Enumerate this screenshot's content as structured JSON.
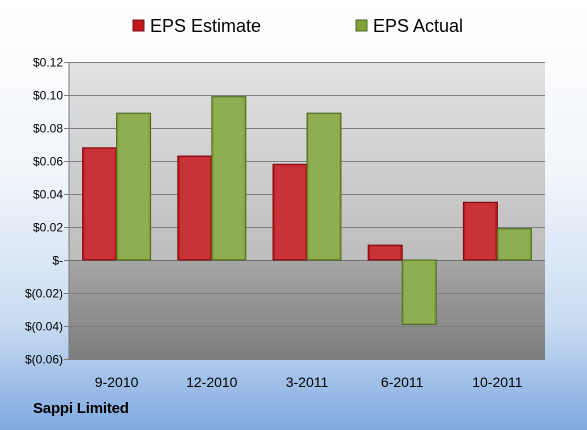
{
  "chart_data": {
    "type": "bar",
    "categories": [
      "9-2010",
      "12-2010",
      "3-2011",
      "6-2011",
      "10-2011"
    ],
    "series": [
      {
        "name": "EPS Estimate",
        "values": [
          0.068,
          0.063,
          0.058,
          0.009,
          0.035
        ],
        "color": "#c0171c"
      },
      {
        "name": "EPS Actual",
        "values": [
          0.089,
          0.099,
          0.089,
          -0.039,
          0.019
        ],
        "color": "#7fa33a"
      }
    ],
    "ylim": [
      -0.06,
      0.12
    ],
    "yticks": [
      {
        "value": 0.12,
        "label": "$0.12"
      },
      {
        "value": 0.1,
        "label": "$0.10"
      },
      {
        "value": 0.08,
        "label": "$0.08"
      },
      {
        "value": 0.06,
        "label": "$0.06"
      },
      {
        "value": 0.04,
        "label": "$0.04"
      },
      {
        "value": 0.02,
        "label": "$0.02"
      },
      {
        "value": 0.0,
        "label": "$-"
      },
      {
        "value": -0.02,
        "label": "$(0.02)"
      },
      {
        "value": -0.04,
        "label": "$(0.04)"
      },
      {
        "value": -0.06,
        "label": "$(0.06)"
      }
    ],
    "grid": true,
    "legend_position": "top",
    "plot_background_positive": "#c8c8c8",
    "plot_background_negative": "#8a8a8a"
  },
  "footer": {
    "company": "Sappi Limited"
  }
}
